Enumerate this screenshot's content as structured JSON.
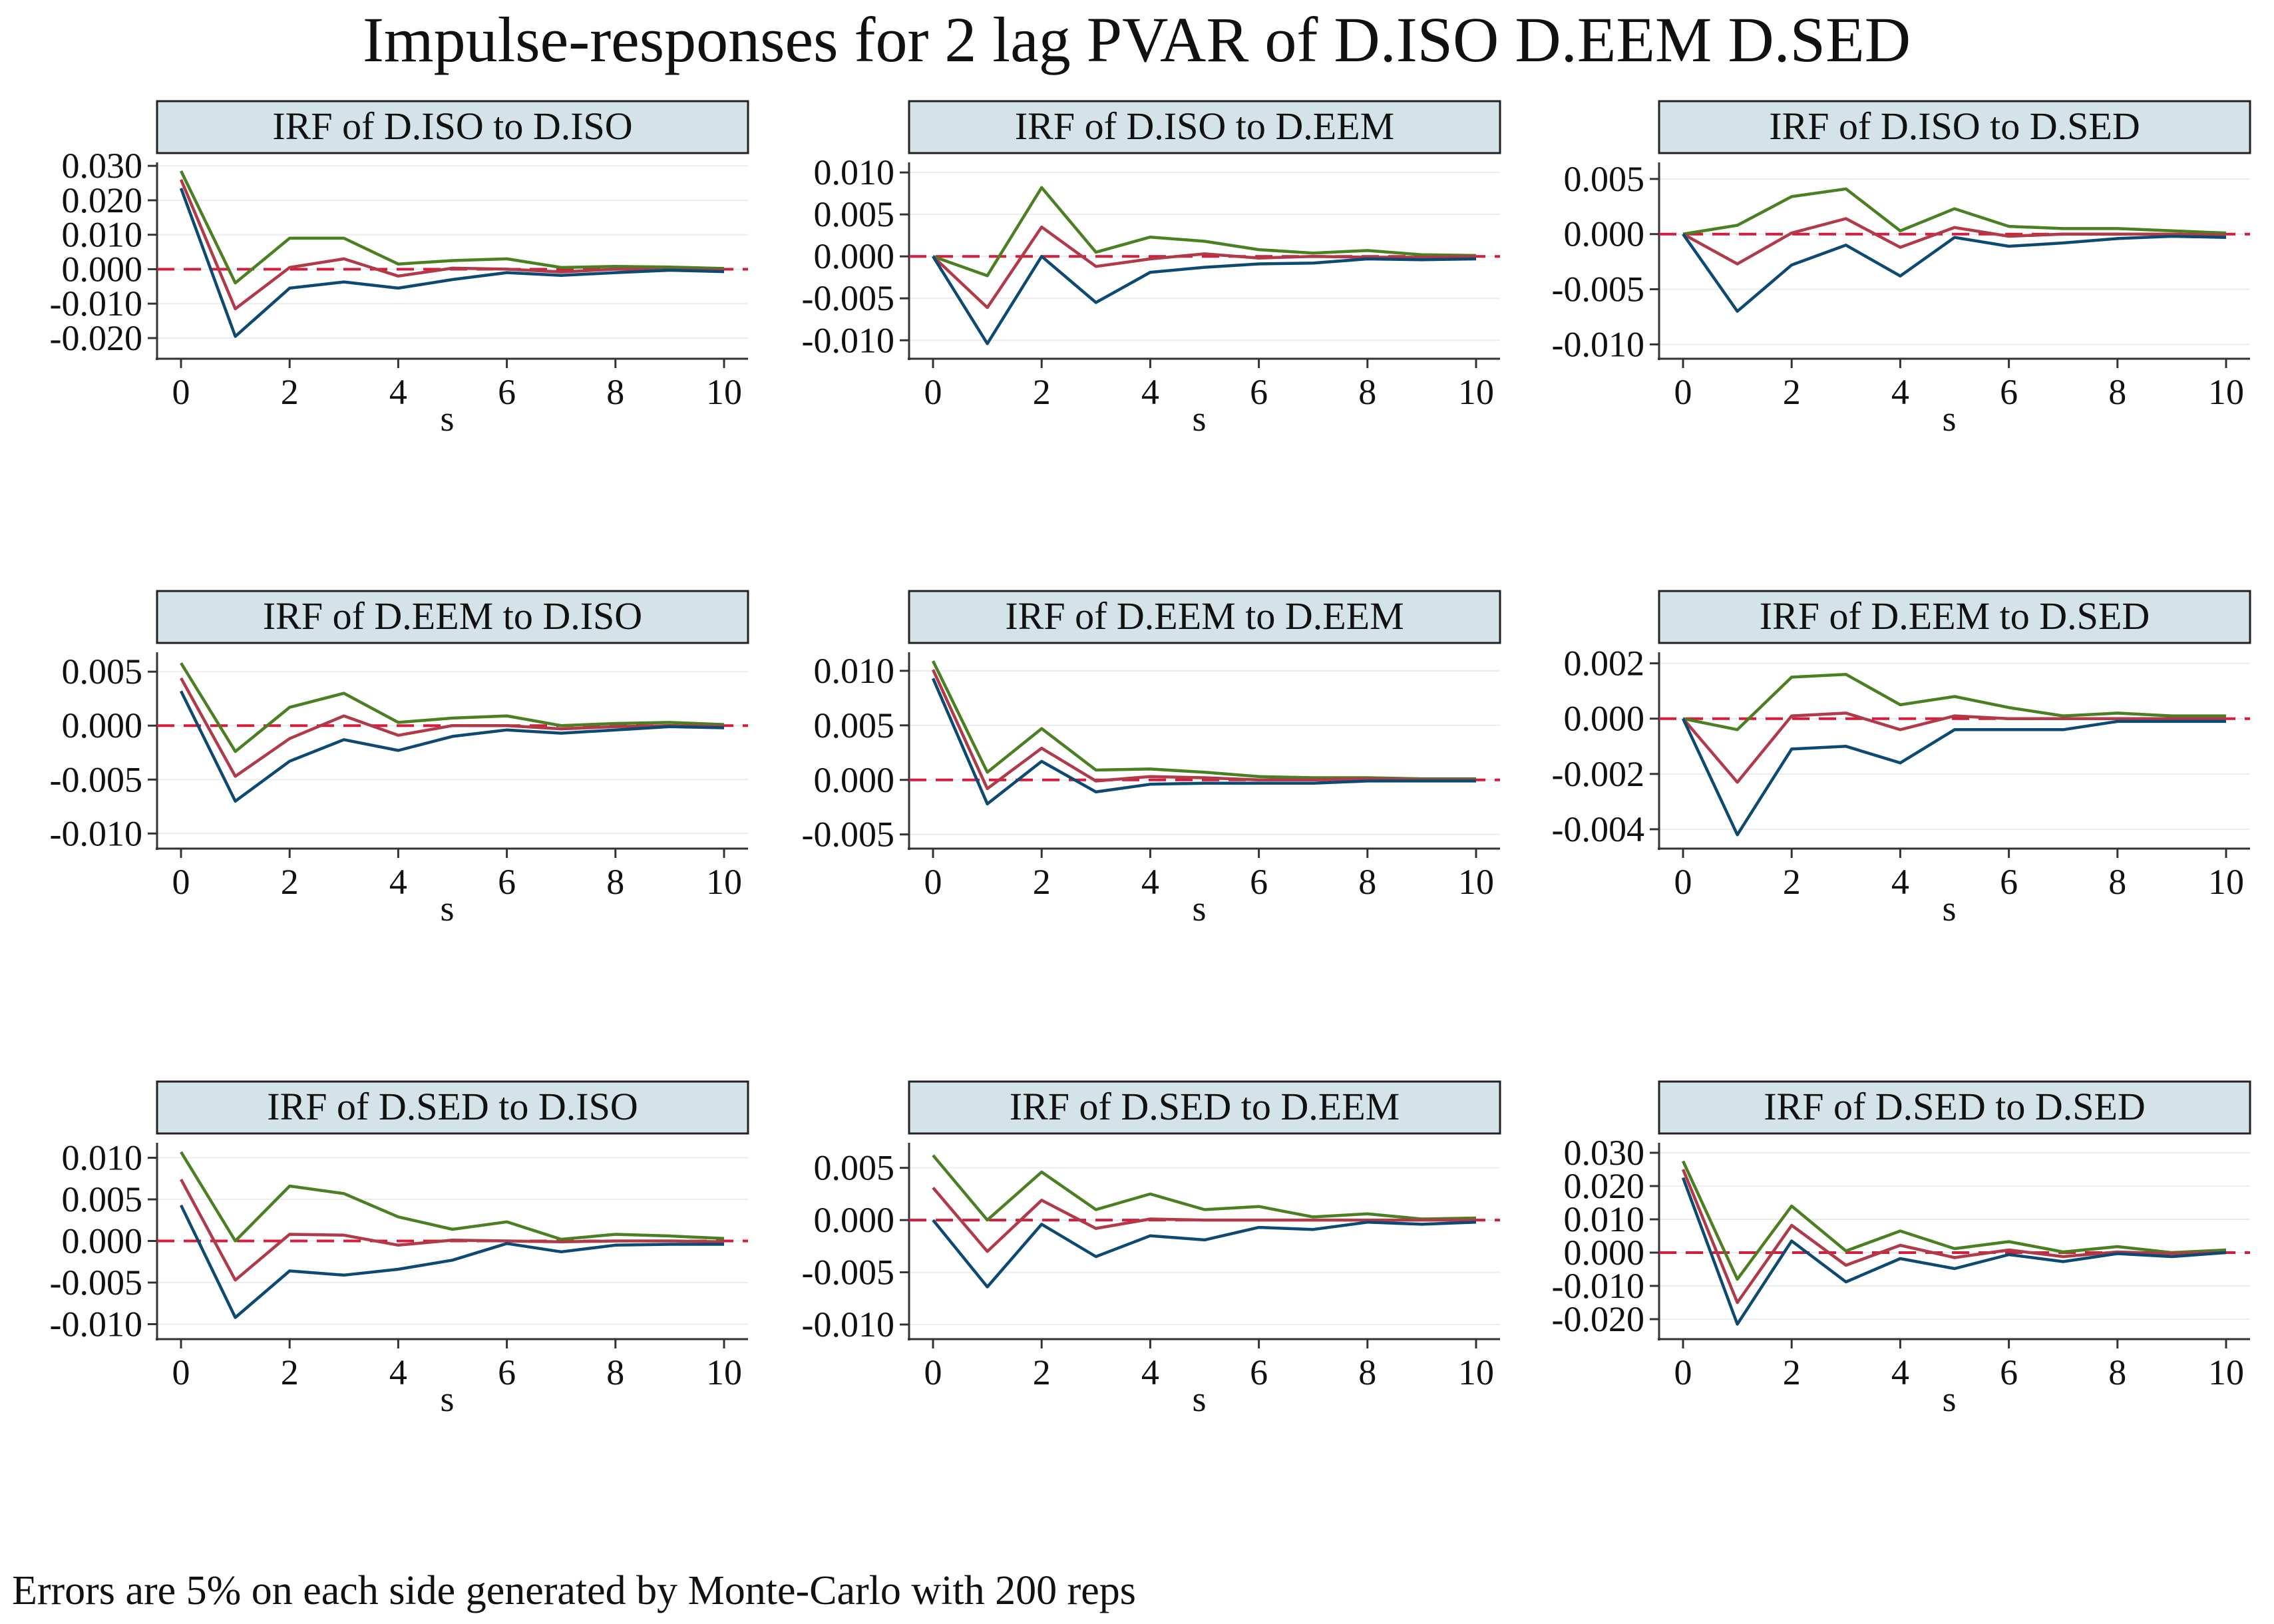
{
  "title": "Impulse-responses for 2 lag PVAR of D.ISO D.EEM D.SED",
  "note": "Errors are 5% on each side generated by Monte-Carlo with 200 reps",
  "colors": {
    "upper": "#4a7f22",
    "irf": "#b03a48",
    "lower": "#0d4a73",
    "zero": "#d41c3c",
    "header_fill": "#d3e3e8",
    "grid": "#ececec",
    "axis": "#333333"
  },
  "chart_data": [
    {
      "type": "line",
      "title": "IRF of D.ISO to D.ISO",
      "xlabel": "s",
      "x": [
        0,
        1,
        2,
        3,
        4,
        5,
        6,
        7,
        8,
        9,
        10
      ],
      "ylim": [
        -0.026,
        0.031
      ],
      "yticks": [
        "0.030",
        "0.020",
        "0.010",
        "0.000",
        "-0.010",
        "-0.020"
      ],
      "ytick_values": [
        0.03,
        0.02,
        0.01,
        0.0,
        -0.01,
        -0.02
      ],
      "xticks": [
        "0",
        "2",
        "4",
        "6",
        "8",
        "10"
      ],
      "series": [
        {
          "role": "upper",
          "values": [
            0.0285,
            -0.004,
            0.009,
            0.009,
            0.0015,
            0.0025,
            0.003,
            0.0005,
            0.0008,
            0.0006,
            0.0002
          ]
        },
        {
          "role": "irf",
          "values": [
            0.026,
            -0.0115,
            0.0005,
            0.003,
            -0.002,
            0.0003,
            0.0,
            -0.0008,
            0.0,
            -0.0002,
            -0.0003
          ]
        },
        {
          "role": "lower",
          "values": [
            0.0235,
            -0.0195,
            -0.0055,
            -0.0037,
            -0.0055,
            -0.003,
            -0.001,
            -0.0018,
            -0.001,
            -0.0003,
            -0.0007
          ]
        }
      ]
    },
    {
      "type": "line",
      "title": "IRF of D.ISO to D.EEM",
      "xlabel": "s",
      "x": [
        0,
        1,
        2,
        3,
        4,
        5,
        6,
        7,
        8,
        9,
        10
      ],
      "ylim": [
        -0.0122,
        0.0112
      ],
      "yticks": [
        "0.010",
        "0.005",
        "0.000",
        "-0.005",
        "-0.010"
      ],
      "ytick_values": [
        0.01,
        0.005,
        0.0,
        -0.005,
        -0.01
      ],
      "xticks": [
        "0",
        "2",
        "4",
        "6",
        "8",
        "10"
      ],
      "series": [
        {
          "role": "upper",
          "values": [
            0.0,
            -0.0023,
            0.0082,
            0.0005,
            0.0023,
            0.0018,
            0.0008,
            0.0004,
            0.0007,
            0.0002,
            0.0001
          ]
        },
        {
          "role": "irf",
          "values": [
            0.0,
            -0.0061,
            0.0035,
            -0.0012,
            -0.0003,
            0.0003,
            -0.0002,
            0.0,
            -0.0001,
            -0.0001,
            0.0
          ]
        },
        {
          "role": "lower",
          "values": [
            0.0,
            -0.0104,
            0.0,
            -0.0055,
            -0.0019,
            -0.0013,
            -0.0009,
            -0.0008,
            -0.0003,
            -0.0004,
            -0.0003
          ]
        }
      ]
    },
    {
      "type": "line",
      "title": "IRF of D.ISO to D.SED",
      "xlabel": "s",
      "x": [
        0,
        1,
        2,
        3,
        4,
        5,
        6,
        7,
        8,
        9,
        10
      ],
      "ylim": [
        -0.0113,
        0.0065
      ],
      "yticks": [
        "0.005",
        "0.000",
        "-0.005",
        "-0.010"
      ],
      "ytick_values": [
        0.005,
        0.0,
        -0.005,
        -0.01
      ],
      "xticks": [
        "0",
        "2",
        "4",
        "6",
        "8",
        "10"
      ],
      "series": [
        {
          "role": "upper",
          "values": [
            0.0,
            0.0008,
            0.0034,
            0.0041,
            0.0003,
            0.0023,
            0.0007,
            0.0005,
            0.0005,
            0.0003,
            0.0001
          ]
        },
        {
          "role": "irf",
          "values": [
            0.0,
            -0.0027,
            0.0001,
            0.0014,
            -0.0012,
            0.0006,
            -0.0002,
            0.0,
            0.0,
            0.0,
            -0.0001
          ]
        },
        {
          "role": "lower",
          "values": [
            0.0,
            -0.007,
            -0.0028,
            -0.001,
            -0.0038,
            -0.0003,
            -0.0011,
            -0.0008,
            -0.0004,
            -0.0002,
            -0.0003
          ]
        }
      ]
    },
    {
      "type": "line",
      "title": "IRF of D.EEM to D.ISO",
      "xlabel": "s",
      "x": [
        0,
        1,
        2,
        3,
        4,
        5,
        6,
        7,
        8,
        9,
        10
      ],
      "ylim": [
        -0.0114,
        0.0068
      ],
      "yticks": [
        "0.005",
        "0.000",
        "-0.005",
        "-0.010"
      ],
      "ytick_values": [
        0.005,
        0.0,
        -0.005,
        -0.01
      ],
      "xticks": [
        "0",
        "2",
        "4",
        "6",
        "8",
        "10"
      ],
      "series": [
        {
          "role": "upper",
          "values": [
            0.0058,
            -0.0024,
            0.0017,
            0.003,
            0.0003,
            0.0007,
            0.0009,
            0.0,
            0.0002,
            0.0003,
            0.0001
          ]
        },
        {
          "role": "irf",
          "values": [
            0.0044,
            -0.0047,
            -0.0012,
            0.0009,
            -0.0009,
            0.0,
            0.0,
            -0.0003,
            -0.0001,
            0.0,
            -0.0001
          ]
        },
        {
          "role": "lower",
          "values": [
            0.0032,
            -0.007,
            -0.0033,
            -0.0013,
            -0.0023,
            -0.001,
            -0.0004,
            -0.0007,
            -0.0004,
            -0.0001,
            -0.0002
          ]
        }
      ]
    },
    {
      "type": "line",
      "title": "IRF of D.EEM to D.EEM",
      "xlabel": "s",
      "x": [
        0,
        1,
        2,
        3,
        4,
        5,
        6,
        7,
        8,
        9,
        10
      ],
      "ylim": [
        -0.0063,
        0.0117
      ],
      "yticks": [
        "0.010",
        "0.005",
        "0.000",
        "-0.005"
      ],
      "ytick_values": [
        0.01,
        0.005,
        0.0,
        -0.005
      ],
      "xticks": [
        "0",
        "2",
        "4",
        "6",
        "8",
        "10"
      ],
      "series": [
        {
          "role": "upper",
          "values": [
            0.0109,
            0.0007,
            0.0047,
            0.0009,
            0.001,
            0.0007,
            0.0003,
            0.0002,
            0.0002,
            0.0001,
            0.0001
          ]
        },
        {
          "role": "irf",
          "values": [
            0.0101,
            -0.0008,
            0.0029,
            -0.0001,
            0.0003,
            0.0002,
            0.0,
            0.0,
            0.0001,
            0.0,
            0.0
          ]
        },
        {
          "role": "lower",
          "values": [
            0.0093,
            -0.0022,
            0.0017,
            -0.0011,
            -0.0004,
            -0.0003,
            -0.0003,
            -0.0003,
            -0.0001,
            -0.0001,
            -0.0001
          ]
        }
      ]
    },
    {
      "type": "line",
      "title": "IRF of D.EEM to D.SED",
      "xlabel": "s",
      "x": [
        0,
        1,
        2,
        3,
        4,
        5,
        6,
        7,
        8,
        9,
        10
      ],
      "ylim": [
        -0.0047,
        0.0024
      ],
      "yticks": [
        "0.002",
        "0.000",
        "-0.002",
        "-0.004"
      ],
      "ytick_values": [
        0.002,
        0.0,
        -0.002,
        -0.004
      ],
      "xticks": [
        "0",
        "2",
        "4",
        "6",
        "8",
        "10"
      ],
      "series": [
        {
          "role": "upper",
          "values": [
            0.0,
            -0.0004,
            0.0015,
            0.0016,
            0.0005,
            0.0008,
            0.0004,
            0.0001,
            0.0002,
            0.0001,
            0.0001
          ]
        },
        {
          "role": "irf",
          "values": [
            0.0,
            -0.0023,
            0.0001,
            0.0002,
            -0.0004,
            0.0001,
            0.0,
            0.0,
            0.0,
            0.0,
            0.0
          ]
        },
        {
          "role": "lower",
          "values": [
            0.0,
            -0.0042,
            -0.0011,
            -0.001,
            -0.0016,
            -0.0004,
            -0.0004,
            -0.0004,
            -0.0001,
            -0.0001,
            -0.0001
          ]
        }
      ]
    },
    {
      "type": "line",
      "title": "IRF of D.SED to D.ISO",
      "xlabel": "s",
      "x": [
        0,
        1,
        2,
        3,
        4,
        5,
        6,
        7,
        8,
        9,
        10
      ],
      "ylim": [
        -0.0118,
        0.0118
      ],
      "yticks": [
        "0.010",
        "0.005",
        "0.000",
        "-0.005",
        "-0.010"
      ],
      "ytick_values": [
        0.01,
        0.005,
        0.0,
        -0.005,
        -0.01
      ],
      "xticks": [
        "0",
        "2",
        "4",
        "6",
        "8",
        "10"
      ],
      "series": [
        {
          "role": "upper",
          "values": [
            0.0107,
            0.0,
            0.0066,
            0.0057,
            0.0029,
            0.0014,
            0.0023,
            0.0002,
            0.0008,
            0.0006,
            0.0003
          ]
        },
        {
          "role": "irf",
          "values": [
            0.0074,
            -0.0047,
            0.0008,
            0.0007,
            -0.0005,
            0.0001,
            0.0,
            -0.0001,
            0.0,
            0.0,
            -0.0001
          ]
        },
        {
          "role": "lower",
          "values": [
            0.0043,
            -0.0092,
            -0.0036,
            -0.0041,
            -0.0034,
            -0.0023,
            -0.0003,
            -0.0013,
            -0.0005,
            -0.0004,
            -0.0004
          ]
        }
      ]
    },
    {
      "type": "line",
      "title": "IRF of D.SED to D.EEM",
      "xlabel": "s",
      "x": [
        0,
        1,
        2,
        3,
        4,
        5,
        6,
        7,
        8,
        9,
        10
      ],
      "ylim": [
        -0.0114,
        0.0074
      ],
      "yticks": [
        "0.005",
        "0.000",
        "-0.005",
        "-0.010"
      ],
      "ytick_values": [
        0.005,
        0.0,
        -0.005,
        -0.01
      ],
      "xticks": [
        "0",
        "2",
        "4",
        "6",
        "8",
        "10"
      ],
      "series": [
        {
          "role": "upper",
          "values": [
            0.0062,
            0.0,
            0.0046,
            0.001,
            0.0025,
            0.001,
            0.0013,
            0.0003,
            0.0006,
            0.0001,
            0.0002
          ]
        },
        {
          "role": "irf",
          "values": [
            0.0031,
            -0.003,
            0.0019,
            -0.0008,
            0.0001,
            0.0,
            0.0,
            0.0,
            0.0,
            0.0,
            0.0
          ]
        },
        {
          "role": "lower",
          "values": [
            0.0,
            -0.0064,
            -0.0004,
            -0.0035,
            -0.0015,
            -0.0019,
            -0.0007,
            -0.0009,
            -0.0002,
            -0.0004,
            -0.0002
          ]
        }
      ]
    },
    {
      "type": "line",
      "title": "IRF of D.SED to D.SED",
      "xlabel": "s",
      "x": [
        0,
        1,
        2,
        3,
        4,
        5,
        6,
        7,
        8,
        9,
        10
      ],
      "ylim": [
        -0.026,
        0.033
      ],
      "yticks": [
        "0.030",
        "0.020",
        "0.010",
        "0.000",
        "-0.010",
        "-0.020"
      ],
      "ytick_values": [
        0.03,
        0.02,
        0.01,
        0.0,
        -0.01,
        -0.02
      ],
      "xticks": [
        "0",
        "2",
        "4",
        "6",
        "8",
        "10"
      ],
      "series": [
        {
          "role": "upper",
          "values": [
            0.0275,
            -0.008,
            0.014,
            0.0005,
            0.0065,
            0.0012,
            0.0033,
            0.0002,
            0.0018,
            0.0,
            0.0008
          ]
        },
        {
          "role": "irf",
          "values": [
            0.025,
            -0.015,
            0.0082,
            -0.0038,
            0.0022,
            -0.0015,
            0.0008,
            -0.0012,
            0.0002,
            -0.0003,
            0.0
          ]
        },
        {
          "role": "lower",
          "values": [
            0.0225,
            -0.0215,
            0.0035,
            -0.0088,
            -0.0018,
            -0.0048,
            -0.0006,
            -0.0027,
            -0.0003,
            -0.0012,
            0.0
          ]
        }
      ]
    }
  ]
}
